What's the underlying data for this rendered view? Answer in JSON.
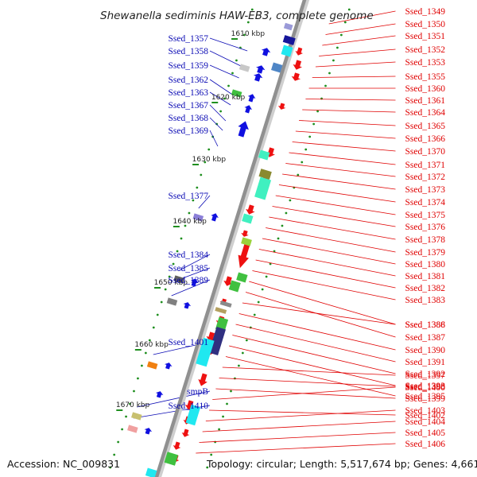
{
  "title": "Shewanella sediminis HAW-EB3, complete genome",
  "footer": {
    "accession": "Accession: NC_009831",
    "summary": "Topology: circular; Length: 5,517,674 bp; Genes: 4,661"
  },
  "colors": {
    "backbone": "#909090",
    "left_label": "#0a0ab4",
    "right_label": "#e00000",
    "forward_arrow": "#1010e0",
    "reverse_arrow": "#ee1111",
    "tick": "#1f8f1f"
  },
  "kbp_marks": [
    "1610 kbp",
    "1620 kbp",
    "1630 kbp",
    "1640 kbp",
    "1650 kbp",
    "1660 kbp",
    "1670 kbp"
  ],
  "left_genes": [
    "Ssed_1357",
    "Ssed_1358",
    "Ssed_1359",
    "Ssed_1362",
    "Ssed_1363",
    "Ssed_1367",
    "Ssed_1368",
    "Ssed_1369",
    "Ssed_1377",
    "Ssed_1384",
    "Ssed_1385",
    "Ssed_1389",
    "Ssed_1401",
    "smpB",
    "Ssed_1410"
  ],
  "right_genes": [
    "Ssed_1349",
    "Ssed_1350",
    "Ssed_1351",
    "Ssed_1352",
    "Ssed_1353",
    "Ssed_1355",
    "Ssed_1360",
    "Ssed_1361",
    "Ssed_1364",
    "Ssed_1365",
    "Ssed_1366",
    "Ssed_1370",
    "Ssed_1371",
    "Ssed_1372",
    "Ssed_1373",
    "Ssed_1374",
    "Ssed_1375",
    "Ssed_1376",
    "Ssed_1378",
    "Ssed_1379",
    "Ssed_1380",
    "Ssed_1381",
    "Ssed_1382",
    "Ssed_1383",
    "Ssed_1386",
    "Ssed_1387",
    "Ssed_1388",
    "Ssed_1390",
    "Ssed_1391",
    "Ssed_1392",
    "Ssed_1393",
    "Ssed_1395",
    "Ssed_1397",
    "Ssed_1398",
    "Ssed_1399",
    "Ssed_1400",
    "Ssed_1402",
    "Ssed_1403",
    "Ssed_1404",
    "Ssed_1405",
    "Ssed_1406"
  ]
}
